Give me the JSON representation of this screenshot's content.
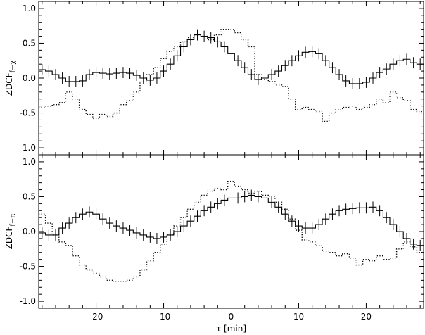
{
  "chart_data": [
    {
      "type": "line",
      "panel": "top",
      "xlabel": "",
      "ylabel": "ZDCF",
      "ylabel_sub": "f−χ",
      "xlim": [
        -28.5,
        28.5
      ],
      "ylim": [
        -1.1,
        1.1
      ],
      "yticks": [
        "1.0",
        "0.5",
        "0.0",
        "-0.5",
        "-1.0"
      ],
      "xticks": [
        "-20",
        "-10",
        "0",
        "10",
        "20"
      ],
      "series": [
        {
          "style": "solid-step-errorbars",
          "x": [
            -28,
            -27,
            -26,
            -25,
            -24,
            -23,
            -22,
            -21,
            -20,
            -19,
            -18,
            -17,
            -16,
            -15,
            -14,
            -13,
            -12,
            -11,
            -10,
            -9,
            -8,
            -7,
            -6,
            -5,
            -4,
            -3,
            -2,
            -1,
            0,
            1,
            2,
            3,
            4,
            5,
            6,
            7,
            8,
            9,
            10,
            11,
            12,
            13,
            14,
            15,
            16,
            17,
            18,
            19,
            20,
            21,
            22,
            23,
            24,
            25,
            26,
            27,
            28
          ],
          "y": [
            0.12,
            0.1,
            0.05,
            0.0,
            -0.05,
            -0.05,
            -0.04,
            0.05,
            0.08,
            0.07,
            0.06,
            0.07,
            0.08,
            0.07,
            0.04,
            0.0,
            -0.03,
            0.0,
            0.1,
            0.2,
            0.32,
            0.45,
            0.55,
            0.62,
            0.6,
            0.58,
            0.52,
            0.45,
            0.35,
            0.25,
            0.15,
            0.05,
            -0.02,
            0.0,
            0.05,
            0.1,
            0.18,
            0.25,
            0.32,
            0.37,
            0.38,
            0.35,
            0.25,
            0.15,
            0.05,
            -0.04,
            -0.08,
            -0.08,
            -0.06,
            0.0,
            0.08,
            0.13,
            0.2,
            0.25,
            0.27,
            0.22,
            0.2
          ],
          "err": 0.08
        },
        {
          "style": "dotted-step",
          "x": [
            -28,
            -27,
            -26,
            -25,
            -24,
            -23,
            -22,
            -21,
            -20,
            -19,
            -18,
            -17,
            -16,
            -15,
            -14,
            -13,
            -12,
            -11,
            -10,
            -9,
            -8,
            -7,
            -6,
            -5,
            -4,
            -3,
            -2,
            -1,
            0,
            1,
            2,
            3,
            4,
            5,
            6,
            7,
            8,
            9,
            10,
            11,
            12,
            13,
            14,
            15,
            16,
            17,
            18,
            19,
            20,
            21,
            22,
            23,
            24,
            25,
            26,
            27,
            28
          ],
          "y": [
            -0.42,
            -0.4,
            -0.38,
            -0.35,
            -0.2,
            -0.3,
            -0.45,
            -0.52,
            -0.58,
            -0.52,
            -0.55,
            -0.5,
            -0.38,
            -0.32,
            -0.2,
            -0.05,
            0.05,
            0.15,
            0.28,
            0.38,
            0.45,
            0.52,
            0.58,
            0.62,
            0.6,
            0.55,
            0.62,
            0.7,
            0.7,
            0.65,
            0.55,
            0.45,
            0.05,
            -0.02,
            -0.05,
            -0.1,
            -0.12,
            -0.3,
            -0.45,
            -0.42,
            -0.45,
            -0.48,
            -0.62,
            -0.5,
            -0.45,
            -0.42,
            -0.4,
            -0.45,
            -0.42,
            -0.38,
            -0.3,
            -0.35,
            -0.2,
            -0.28,
            -0.32,
            -0.45,
            -0.48
          ]
        }
      ]
    },
    {
      "type": "line",
      "panel": "bottom",
      "xlabel": "τ [min]",
      "ylabel": "ZDCF",
      "ylabel_sub": "f−π",
      "xlim": [
        -28.5,
        28.5
      ],
      "ylim": [
        -1.1,
        1.1
      ],
      "yticks": [
        "1.0",
        "0.5",
        "0.0",
        "-0.5",
        "-1.0"
      ],
      "xticks": [
        "-20",
        "-10",
        "0",
        "10",
        "20"
      ],
      "series": [
        {
          "style": "solid-step-errorbars",
          "x": [
            -28,
            -27,
            -26,
            -25,
            -24,
            -23,
            -22,
            -21,
            -20,
            -19,
            -18,
            -17,
            -16,
            -15,
            -14,
            -13,
            -12,
            -11,
            -10,
            -9,
            -8,
            -7,
            -6,
            -5,
            -4,
            -3,
            -2,
            -1,
            0,
            1,
            2,
            3,
            4,
            5,
            6,
            7,
            8,
            9,
            10,
            11,
            12,
            13,
            14,
            15,
            16,
            17,
            18,
            19,
            20,
            21,
            22,
            23,
            24,
            25,
            26,
            27,
            28
          ],
          "y": [
            -0.02,
            -0.05,
            -0.05,
            0.05,
            0.12,
            0.2,
            0.25,
            0.28,
            0.25,
            0.18,
            0.12,
            0.08,
            0.05,
            0.02,
            -0.02,
            -0.05,
            -0.08,
            -0.1,
            -0.08,
            -0.05,
            0.0,
            0.08,
            0.15,
            0.22,
            0.3,
            0.35,
            0.4,
            0.45,
            0.48,
            0.48,
            0.5,
            0.52,
            0.5,
            0.48,
            0.42,
            0.35,
            0.25,
            0.15,
            0.08,
            0.05,
            0.05,
            0.1,
            0.18,
            0.25,
            0.3,
            0.32,
            0.33,
            0.34,
            0.34,
            0.35,
            0.3,
            0.2,
            0.1,
            0.0,
            -0.1,
            -0.18,
            -0.2
          ],
          "err": 0.08
        },
        {
          "style": "dotted-step",
          "x": [
            -28,
            -27,
            -26,
            -25,
            -24,
            -23,
            -22,
            -21,
            -20,
            -19,
            -18,
            -17,
            -16,
            -15,
            -14,
            -13,
            -12,
            -11,
            -10,
            -9,
            -8,
            -7,
            -6,
            -5,
            -4,
            -3,
            -2,
            -1,
            0,
            1,
            2,
            3,
            4,
            5,
            6,
            7,
            8,
            9,
            10,
            11,
            12,
            13,
            14,
            15,
            16,
            17,
            18,
            19,
            20,
            21,
            22,
            23,
            24,
            25,
            26,
            27,
            28
          ],
          "y": [
            0.25,
            0.12,
            -0.05,
            -0.15,
            -0.2,
            -0.35,
            -0.48,
            -0.55,
            -0.6,
            -0.65,
            -0.7,
            -0.72,
            -0.72,
            -0.7,
            -0.65,
            -0.55,
            -0.42,
            -0.3,
            -0.18,
            -0.05,
            0.08,
            0.2,
            0.32,
            0.42,
            0.52,
            0.58,
            0.62,
            0.6,
            0.72,
            0.65,
            0.6,
            0.55,
            0.58,
            0.52,
            0.5,
            0.42,
            0.32,
            0.18,
            0.02,
            -0.12,
            -0.15,
            -0.2,
            -0.28,
            -0.3,
            -0.35,
            -0.32,
            -0.38,
            -0.48,
            -0.4,
            -0.42,
            -0.35,
            -0.4,
            -0.38,
            -0.25,
            -0.15,
            -0.22,
            -0.3
          ]
        }
      ]
    }
  ]
}
